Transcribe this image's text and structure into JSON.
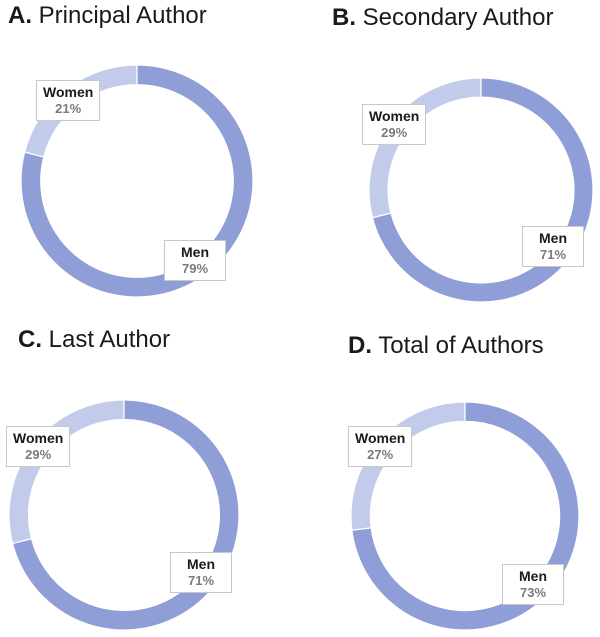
{
  "chart_data": [
    {
      "type": "pie",
      "title_letter": "A.",
      "title": "Principal Author",
      "categories": [
        "Women",
        "Men"
      ],
      "values": [
        21,
        79
      ],
      "value_labels": [
        "21%",
        "79%"
      ],
      "colors": [
        "#c2cbea",
        "#8f9ed6"
      ]
    },
    {
      "type": "pie",
      "title_letter": "B.",
      "title": "Secondary Author",
      "categories": [
        "Women",
        "Men"
      ],
      "values": [
        29,
        71
      ],
      "value_labels": [
        "29%",
        "71%"
      ],
      "colors": [
        "#c2cbea",
        "#8f9ed6"
      ]
    },
    {
      "type": "pie",
      "title_letter": "C.",
      "title": "Last Author",
      "categories": [
        "Women",
        "Men"
      ],
      "values": [
        29,
        71
      ],
      "value_labels": [
        "29%",
        "71%"
      ],
      "colors": [
        "#c2cbea",
        "#8f9ed6"
      ]
    },
    {
      "type": "pie",
      "title_letter": "D.",
      "title": "Total of Authors",
      "categories": [
        "Women",
        "Men"
      ],
      "values": [
        27,
        73
      ],
      "value_labels": [
        "27%",
        "73%"
      ],
      "colors": [
        "#c2cbea",
        "#8f9ed6"
      ]
    }
  ]
}
